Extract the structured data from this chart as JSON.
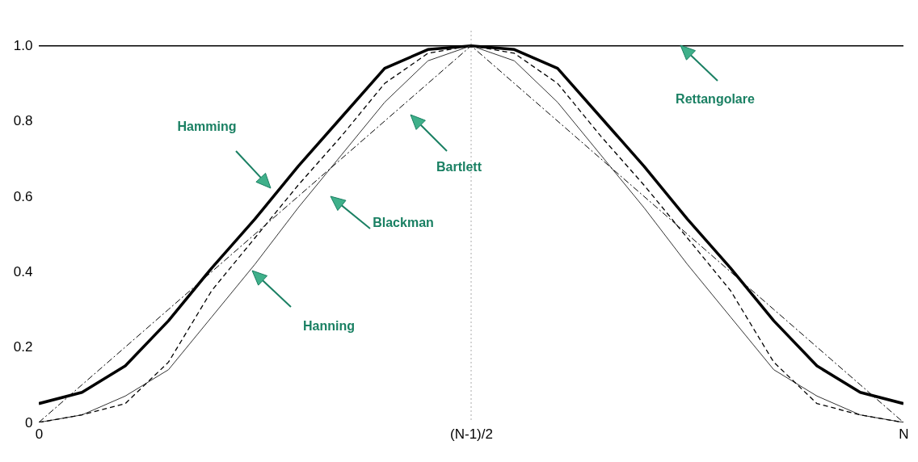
{
  "chart_data": {
    "type": "line",
    "categories": [
      "0",
      null,
      null,
      null,
      null,
      null,
      null,
      null,
      null,
      null,
      "(N-1)/2",
      null,
      null,
      null,
      null,
      null,
      null,
      null,
      null,
      null,
      "N"
    ],
    "ylim": [
      0,
      1.04
    ],
    "yticks": [
      0,
      0.2,
      0.4,
      0.6,
      0.8,
      {
        "value": 1,
        "label": "1.0"
      }
    ],
    "marker": "none",
    "series": [
      {
        "color": "#000000",
        "line_style": "solid",
        "values": [
          1,
          1,
          1,
          1,
          1,
          1,
          1,
          1,
          1,
          1,
          1,
          1,
          1,
          1,
          1,
          1,
          1,
          1,
          1,
          1,
          1
        ]
      },
      {
        "color": "#000000",
        "line_style": "solid",
        "values": [
          0.05,
          0.08,
          0.15,
          0.27,
          0.41,
          0.54,
          0.68,
          0.81,
          0.94,
          0.99,
          1,
          0.99,
          0.94,
          0.81,
          0.68,
          0.54,
          0.41,
          0.27,
          0.15,
          0.08,
          0.05
        ]
      },
      {
        "color": "#333333",
        "line_style": "solid",
        "values": [
          0,
          0.02,
          0.07,
          0.14,
          0.28,
          0.42,
          0.57,
          0.71,
          0.85,
          0.96,
          1,
          0.96,
          0.85,
          0.71,
          0.57,
          0.42,
          0.28,
          0.14,
          0.07,
          0.02,
          0
        ]
      },
      {
        "color": "#000000",
        "line_style": "dashed",
        "values": [
          0,
          0.02,
          0.05,
          0.16,
          0.35,
          0.49,
          0.63,
          0.76,
          0.9,
          0.98,
          1,
          0.98,
          0.9,
          0.76,
          0.63,
          0.49,
          0.35,
          0.16,
          0.05,
          0.02,
          0
        ]
      },
      {
        "color": "#000000",
        "line_style": "dashdot",
        "values": [
          0,
          0.1,
          0.2,
          0.3,
          0.4,
          0.5,
          0.6,
          0.7,
          0.8,
          0.9,
          1,
          0.9,
          0.8,
          0.7,
          0.6,
          0.5,
          0.4,
          0.3,
          0.2,
          0.1,
          0
        ]
      }
    ],
    "ref_lines": [
      {
        "axis": "x",
        "value": "(N-1)/2",
        "color": "#aaaaaa",
        "line_style": "dotted"
      }
    ],
    "annotations": [
      "Rettangolare",
      "Hamming",
      "Bartlett",
      "Blackman",
      "Hanning"
    ]
  }
}
